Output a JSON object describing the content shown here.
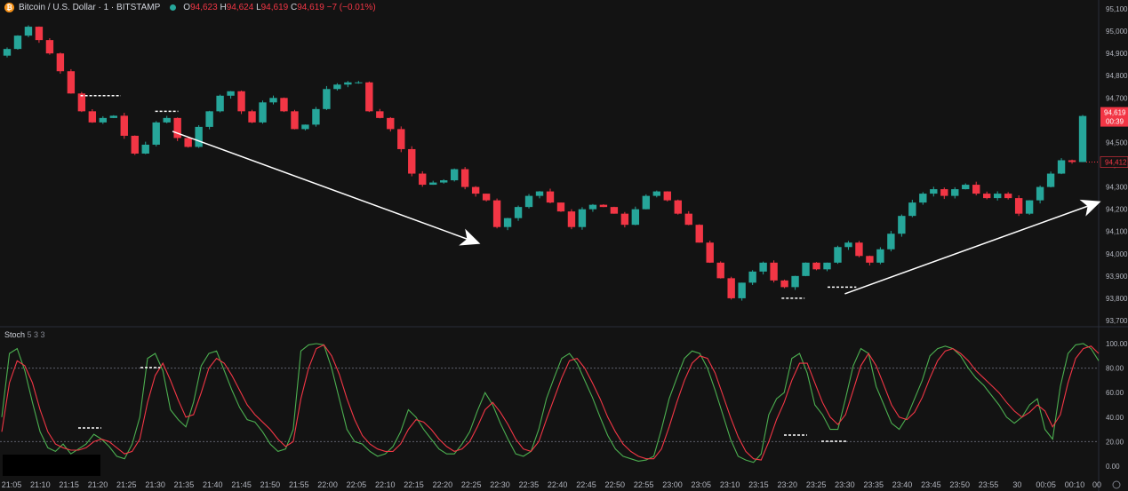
{
  "header": {
    "symbol_icon": "bitcoin-icon",
    "title": "Bitcoin / U.S. Dollar · 1 · BITSTAMP",
    "market_status_icon": "market-open-dot-icon",
    "o_label": "O",
    "o_value": "94,623",
    "h_label": "H",
    "h_value": "94,624",
    "l_label": "L",
    "l_value": "94,619",
    "c_label": "C",
    "c_value": "94,619",
    "change": "−7 (−0.01%)"
  },
  "indicator": {
    "name": "Stoch",
    "params": "5 3 3"
  },
  "price_badge": {
    "price": "94,619",
    "countdown": "00:39",
    "color": "#f23645"
  },
  "prev_badge": {
    "price": "94,412",
    "color": "#f23645"
  },
  "corner_label": "00",
  "colors": {
    "up": "#26a69a",
    "down": "#f23645",
    "k_line": "#4caf50",
    "d_line": "#f23645",
    "background": "#131313"
  },
  "chart_data": [
    {
      "type": "candlestick",
      "ylim": [
        93680,
        95140
      ],
      "y_ticks": [
        "95,100",
        "95,000",
        "94,900",
        "94,800",
        "94,700",
        "94,600",
        "94,500",
        "94,400",
        "94,300",
        "94,200",
        "94,100",
        "94,000",
        "93,900",
        "93,800",
        "93,700"
      ],
      "y_tick_values": [
        95100,
        95000,
        94900,
        94800,
        94700,
        94600,
        94500,
        94400,
        94300,
        94200,
        94100,
        94000,
        93900,
        93800,
        93700
      ],
      "x_ticks": [
        "21:05",
        "21:10",
        "21:15",
        "21:20",
        "21:25",
        "21:30",
        "21:35",
        "21:40",
        "21:45",
        "21:50",
        "21:55",
        "22:00",
        "22:05",
        "22:10",
        "22:15",
        "22:20",
        "22:25",
        "22:30",
        "22:35",
        "22:40",
        "22:45",
        "22:50",
        "22:55",
        "23:00",
        "23:05",
        "23:10",
        "23:15",
        "23:20",
        "23:25",
        "23:30",
        "23:35",
        "23:40",
        "23:45",
        "23:50",
        "23:55",
        "30",
        "00:05",
        "00:10"
      ],
      "close_path": [
        94890,
        94920,
        94980,
        95020,
        94960,
        94900,
        94820,
        94720,
        94640,
        94590,
        94610,
        94620,
        94530,
        94450,
        94490,
        94590,
        94610,
        94520,
        94480,
        94570,
        94640,
        94710,
        94730,
        94640,
        94590,
        94680,
        94700,
        94640,
        94560,
        94580,
        94650,
        94740,
        94760,
        94770,
        94770,
        94640,
        94610,
        94560,
        94470,
        94360,
        94310,
        94320,
        94330,
        94380,
        94300,
        94270,
        94240,
        94120,
        94160,
        94210,
        94260,
        94280,
        94230,
        94190,
        94120,
        94200,
        94220,
        94210,
        94180,
        94130,
        94200,
        94260,
        94280,
        94240,
        94180,
        94130,
        94050,
        93960,
        93890,
        93800,
        93870,
        93920,
        93960,
        93880,
        93850,
        93900,
        93960,
        93930,
        93960,
        94030,
        94050,
        93990,
        93960,
        94020,
        94090,
        94170,
        94230,
        94270,
        94290,
        94260,
        94290,
        94310,
        94270,
        94250,
        94270,
        94250,
        94180,
        94240,
        94300,
        94360,
        94420,
        94412,
        94619
      ],
      "annotations": [
        {
          "type": "arrow",
          "from": [
            "21:33",
            94550
          ],
          "to": [
            "22:26",
            94050
          ]
        },
        {
          "type": "arrow",
          "from": [
            "23:30",
            93820
          ],
          "to": [
            "00:14",
            94230
          ]
        },
        {
          "type": "level",
          "at": 94710,
          "from": "21:17",
          "to": "21:24"
        },
        {
          "type": "level",
          "at": 94640,
          "from": "21:30",
          "to": "21:34"
        },
        {
          "type": "level",
          "at": 93800,
          "from": "23:19",
          "to": "23:23"
        },
        {
          "type": "level",
          "at": 93850,
          "from": "23:27",
          "to": "23:32"
        }
      ],
      "last_price": 94619
    },
    {
      "type": "line",
      "title": "Stoch 5 3 3",
      "ylim": [
        -8,
        108
      ],
      "y_ticks": [
        "100.00",
        "80.00",
        "60.00",
        "40.00",
        "20.00",
        "0.00"
      ],
      "y_tick_values": [
        100,
        80,
        60,
        40,
        20,
        0
      ],
      "levels": [
        80,
        20
      ],
      "series": [
        {
          "color": "#4caf50",
          "values": [
            40,
            92,
            96,
            78,
            52,
            28,
            15,
            12,
            18,
            10,
            14,
            18,
            26,
            22,
            16,
            8,
            6,
            18,
            40,
            88,
            92,
            78,
            46,
            38,
            32,
            52,
            82,
            92,
            94,
            78,
            62,
            48,
            38,
            36,
            28,
            18,
            12,
            14,
            30,
            94,
            99,
            100,
            99,
            80,
            55,
            30,
            20,
            18,
            12,
            8,
            10,
            16,
            28,
            46,
            40,
            30,
            22,
            14,
            10,
            10,
            18,
            28,
            45,
            60,
            50,
            35,
            22,
            10,
            8,
            12,
            30,
            55,
            72,
            88,
            92,
            84,
            70,
            56,
            40,
            25,
            14,
            8,
            6,
            4,
            5,
            8,
            30,
            55,
            72,
            88,
            94,
            92,
            80,
            62,
            42,
            22,
            8,
            5,
            3,
            10,
            42,
            55,
            60,
            88,
            92,
            76,
            50,
            42,
            30,
            30,
            55,
            82,
            96,
            92,
            65,
            50,
            35,
            30,
            40,
            55,
            70,
            90,
            96,
            98,
            96,
            90,
            80,
            72,
            66,
            58,
            50,
            40,
            35,
            40,
            50,
            55,
            30,
            22,
            65,
            92,
            99,
            100,
            96,
            86
          ]
        },
        {
          "color": "#f23645",
          "values": [
            28,
            68,
            86,
            82,
            68,
            46,
            28,
            18,
            15,
            13,
            13,
            15,
            20,
            22,
            20,
            15,
            10,
            12,
            22,
            52,
            74,
            84,
            70,
            54,
            40,
            42,
            60,
            80,
            88,
            84,
            74,
            62,
            50,
            42,
            36,
            30,
            22,
            16,
            20,
            55,
            80,
            96,
            99,
            90,
            75,
            55,
            38,
            25,
            18,
            14,
            12,
            12,
            18,
            30,
            38,
            36,
            30,
            22,
            16,
            12,
            14,
            20,
            32,
            46,
            52,
            44,
            34,
            22,
            14,
            12,
            20,
            38,
            55,
            72,
            86,
            88,
            80,
            68,
            55,
            40,
            28,
            18,
            12,
            8,
            6,
            6,
            14,
            32,
            52,
            70,
            84,
            90,
            88,
            76,
            58,
            40,
            24,
            12,
            6,
            5,
            20,
            38,
            52,
            70,
            84,
            84,
            68,
            52,
            40,
            34,
            42,
            62,
            82,
            92,
            82,
            66,
            50,
            40,
            38,
            44,
            56,
            72,
            86,
            94,
            96,
            92,
            86,
            78,
            72,
            66,
            60,
            52,
            45,
            40,
            44,
            50,
            45,
            32,
            42,
            68,
            88,
            96,
            98,
            92
          ]
        }
      ]
    }
  ]
}
